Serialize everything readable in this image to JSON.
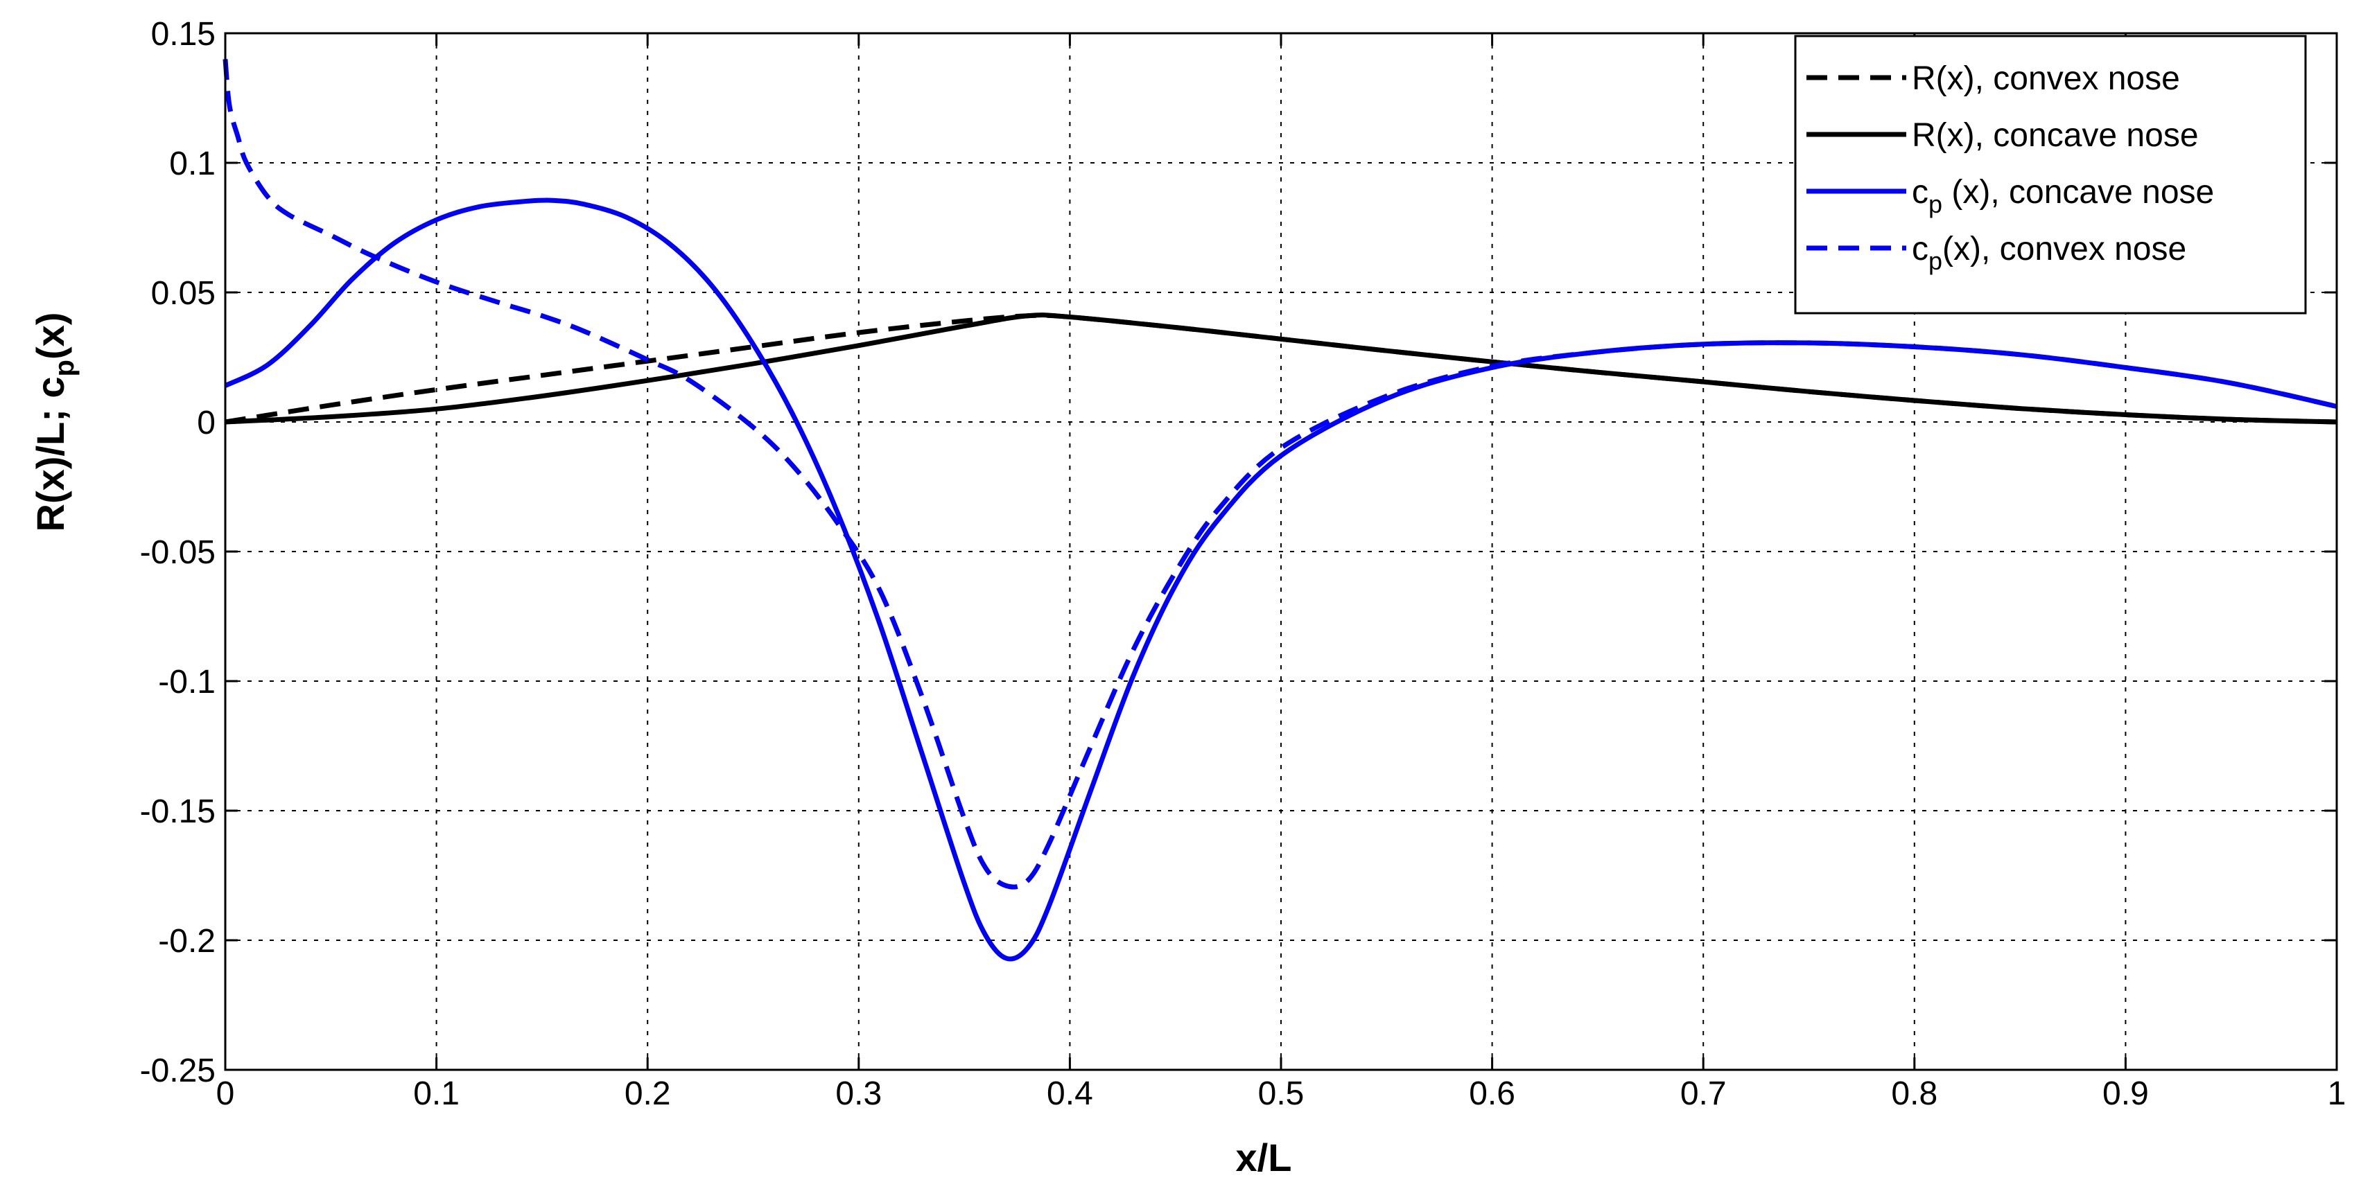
{
  "chart_data": {
    "type": "line",
    "xlabel": "x/L",
    "ylabel": "R(x)/L; c_p(x)",
    "ylabel_main": "R(x)/L; c",
    "ylabel_sub": "p",
    "ylabel_tail": "(x)",
    "xlim": [
      0,
      1
    ],
    "ylim": [
      -0.25,
      0.15
    ],
    "grid": true,
    "legend_position": "top-right",
    "x_ticks": [
      {
        "value": 0,
        "label": "0"
      },
      {
        "value": 0.1,
        "label": "0.1"
      },
      {
        "value": 0.2,
        "label": "0.2"
      },
      {
        "value": 0.3,
        "label": "0.3"
      },
      {
        "value": 0.4,
        "label": "0.4"
      },
      {
        "value": 0.5,
        "label": "0.5"
      },
      {
        "value": 0.6,
        "label": "0.6"
      },
      {
        "value": 0.7,
        "label": "0.7"
      },
      {
        "value": 0.8,
        "label": "0.8"
      },
      {
        "value": 0.9,
        "label": "0.9"
      },
      {
        "value": 1,
        "label": "1"
      }
    ],
    "y_ticks": [
      {
        "value": 0.15,
        "label": "0.15"
      },
      {
        "value": 0.1,
        "label": "0.1"
      },
      {
        "value": 0.05,
        "label": "0.05"
      },
      {
        "value": 0,
        "label": "0"
      },
      {
        "value": -0.05,
        "label": "-0.05"
      },
      {
        "value": -0.1,
        "label": "-0.1"
      },
      {
        "value": -0.15,
        "label": "-0.15"
      },
      {
        "value": -0.2,
        "label": "-0.2"
      },
      {
        "value": -0.25,
        "label": "-0.25"
      }
    ],
    "series": [
      {
        "id": "r-convex",
        "name": "R(x), convex nose",
        "legend_pre": "R(x), convex nose",
        "legend_sub": "",
        "legend_post": "",
        "color": "#000000",
        "dash": true,
        "x": [
          0,
          0.05,
          0.1,
          0.15,
          0.2,
          0.25,
          0.3,
          0.35,
          0.38,
          0.4,
          0.45,
          0.5,
          0.55,
          0.6,
          0.65,
          0.7,
          0.75,
          0.8,
          0.85,
          0.9,
          0.95,
          1.0
        ],
        "y": [
          0,
          0.0065,
          0.0125,
          0.018,
          0.0235,
          0.029,
          0.0345,
          0.039,
          0.041,
          0.0405,
          0.0365,
          0.032,
          0.0275,
          0.0232,
          0.0192,
          0.0155,
          0.0117,
          0.0083,
          0.0052,
          0.0028,
          0.001,
          0
        ]
      },
      {
        "id": "r-concave",
        "name": "R(x), concave nose",
        "legend_pre": "R(x), concave nose",
        "legend_sub": "",
        "legend_post": "",
        "color": "#000000",
        "dash": false,
        "x": [
          0,
          0.05,
          0.1,
          0.15,
          0.2,
          0.25,
          0.3,
          0.35,
          0.38,
          0.4,
          0.45,
          0.5,
          0.55,
          0.6,
          0.65,
          0.7,
          0.75,
          0.8,
          0.85,
          0.9,
          0.95,
          1.0
        ],
        "y": [
          0,
          0.002,
          0.005,
          0.01,
          0.016,
          0.0225,
          0.0295,
          0.037,
          0.041,
          0.0405,
          0.0365,
          0.032,
          0.0275,
          0.0232,
          0.0192,
          0.0155,
          0.0117,
          0.0083,
          0.0052,
          0.0028,
          0.001,
          0
        ]
      },
      {
        "id": "cp-concave",
        "name": "c_p (x), concave nose",
        "legend_pre": "c",
        "legend_sub": "p",
        "legend_post": " (x), concave nose",
        "color": "#0000ff",
        "dash": false,
        "x": [
          0,
          0.02,
          0.04,
          0.06,
          0.08,
          0.1,
          0.12,
          0.14,
          0.155,
          0.17,
          0.19,
          0.21,
          0.23,
          0.25,
          0.27,
          0.29,
          0.31,
          0.33,
          0.35,
          0.36,
          0.37,
          0.38,
          0.39,
          0.41,
          0.43,
          0.45,
          0.47,
          0.5,
          0.55,
          0.6,
          0.65,
          0.7,
          0.75,
          0.8,
          0.85,
          0.9,
          0.95,
          1.0
        ],
        "y": [
          0.014,
          0.022,
          0.037,
          0.055,
          0.069,
          0.078,
          0.083,
          0.085,
          0.0855,
          0.084,
          0.079,
          0.069,
          0.053,
          0.03,
          0.001,
          -0.035,
          -0.078,
          -0.128,
          -0.178,
          -0.198,
          -0.207,
          -0.203,
          -0.187,
          -0.142,
          -0.098,
          -0.063,
          -0.038,
          -0.013,
          0.009,
          0.021,
          0.027,
          0.03,
          0.0305,
          0.029,
          0.026,
          0.021,
          0.015,
          0.006
        ]
      },
      {
        "id": "cp-convex",
        "name": "c_p(x), convex nose",
        "legend_pre": "c",
        "legend_sub": "p",
        "legend_post": "(x), convex nose",
        "color": "#0000ff",
        "dash": true,
        "x": [
          0,
          0.002,
          0.006,
          0.01,
          0.02,
          0.03,
          0.05,
          0.07,
          0.1,
          0.13,
          0.15,
          0.17,
          0.2,
          0.22,
          0.25,
          0.27,
          0.29,
          0.31,
          0.33,
          0.35,
          0.36,
          0.37,
          0.38,
          0.39,
          0.41,
          0.43,
          0.45,
          0.47,
          0.5,
          0.55,
          0.6,
          0.65,
          0.7,
          0.75,
          0.8,
          0.85,
          0.9,
          0.95,
          1.0
        ],
        "y": [
          0.14,
          0.122,
          0.11,
          0.1,
          0.087,
          0.08,
          0.072,
          0.064,
          0.054,
          0.046,
          0.041,
          0.035,
          0.024,
          0.016,
          -0.002,
          -0.018,
          -0.039,
          -0.065,
          -0.106,
          -0.153,
          -0.172,
          -0.179,
          -0.177,
          -0.163,
          -0.125,
          -0.088,
          -0.058,
          -0.034,
          -0.01,
          0.01,
          0.0215,
          0.027,
          0.03,
          0.0305,
          0.029,
          0.026,
          0.021,
          0.015,
          0.006
        ]
      }
    ]
  }
}
